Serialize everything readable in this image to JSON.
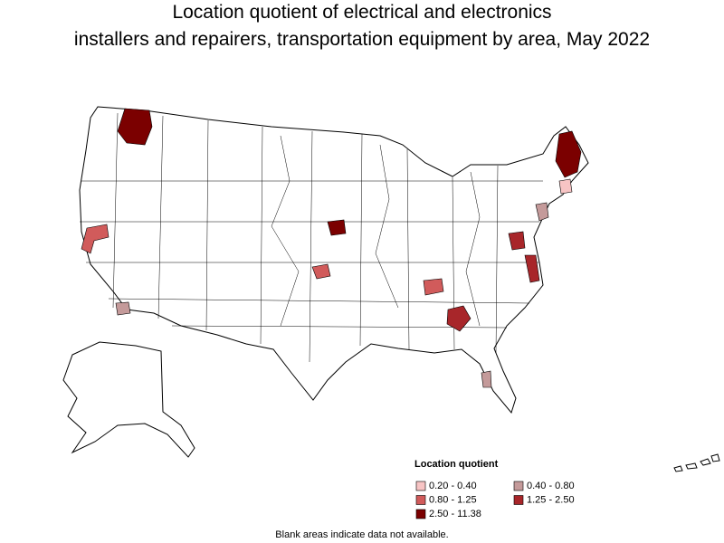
{
  "title": [
    "Location quotient of electrical and electronics",
    "installers and repairers, transportation equipment by area, May 2022"
  ],
  "legend": {
    "title": "Location quotient",
    "items": [
      {
        "label": "0.20 - 0.40",
        "color": "#f7c4c4"
      },
      {
        "label": "0.40 - 0.80",
        "color": "#c49a9a"
      },
      {
        "label": "0.80 - 1.25",
        "color": "#d15b5b"
      },
      {
        "label": "1.25 - 2.50",
        "color": "#a8262a"
      },
      {
        "label": "2.50 - 11.38",
        "color": "#7b0000"
      }
    ]
  },
  "note": "Blank areas indicate data not available."
}
